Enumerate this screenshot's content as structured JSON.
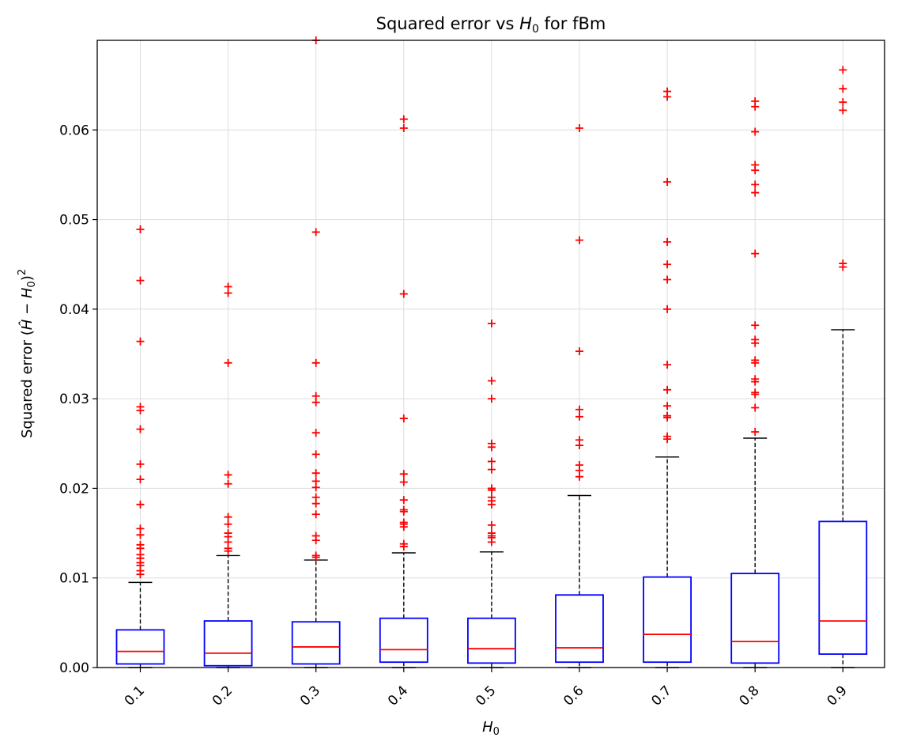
{
  "chart_data": {
    "type": "box",
    "title_parts": [
      "Squared error vs ",
      "H",
      "0",
      " for fBm"
    ],
    "xlabel_parts": [
      "H",
      "0"
    ],
    "ylabel_parts": [
      "Squared error (",
      "Ĥ",
      " − ",
      "H",
      "0",
      ")",
      "2"
    ],
    "categories": [
      "0.1",
      "0.2",
      "0.3",
      "0.4",
      "0.5",
      "0.6",
      "0.7",
      "0.8",
      "0.9"
    ],
    "ylim": [
      0,
      0.07
    ],
    "yticks": [
      {
        "value": 0.0,
        "label": "0.00"
      },
      {
        "value": 0.01,
        "label": "0.01"
      },
      {
        "value": 0.02,
        "label": "0.02"
      },
      {
        "value": 0.03,
        "label": "0.03"
      },
      {
        "value": 0.04,
        "label": "0.04"
      },
      {
        "value": 0.05,
        "label": "0.05"
      },
      {
        "value": 0.06,
        "label": "0.06"
      }
    ],
    "grid": true,
    "colors": {
      "box": "#0000ff",
      "median": "#ff0000",
      "whisker": "#000000",
      "flier": "#ff0000",
      "grid": "#dddddd"
    },
    "boxes": [
      {
        "category": "0.1",
        "whislo": 0.0,
        "q1": 0.0004,
        "median": 0.0018,
        "q3": 0.0042,
        "whishi": 0.0095,
        "fliers": [
          0.0489,
          0.0432,
          0.0364,
          0.0291,
          0.0287,
          0.0266,
          0.0227,
          0.021,
          0.0182,
          0.0155,
          0.0148,
          0.0137,
          0.0133,
          0.0126,
          0.0122,
          0.0117,
          0.0114,
          0.0108,
          0.0104
        ]
      },
      {
        "category": "0.2",
        "whislo": 0.0,
        "q1": 0.0002,
        "median": 0.0016,
        "q3": 0.0052,
        "whishi": 0.0125,
        "fliers": [
          0.0425,
          0.0418,
          0.034,
          0.0215,
          0.0205,
          0.0168,
          0.016,
          0.015,
          0.0146,
          0.014,
          0.0133,
          0.013
        ]
      },
      {
        "category": "0.3",
        "whislo": 0.0,
        "q1": 0.0004,
        "median": 0.0023,
        "q3": 0.0051,
        "whishi": 0.012,
        "fliers": [
          0.07,
          0.0486,
          0.034,
          0.0303,
          0.0296,
          0.0262,
          0.0238,
          0.0217,
          0.0208,
          0.0201,
          0.019,
          0.0183,
          0.0171,
          0.0147,
          0.0142,
          0.0125,
          0.0123
        ]
      },
      {
        "category": "0.4",
        "whislo": 0.0,
        "q1": 0.0006,
        "median": 0.002,
        "q3": 0.0055,
        "whishi": 0.0128,
        "fliers": [
          0.0612,
          0.0602,
          0.0417,
          0.0278,
          0.0216,
          0.0207,
          0.0187,
          0.0176,
          0.0174,
          0.0162,
          0.016,
          0.0157,
          0.0138,
          0.0135
        ]
      },
      {
        "category": "0.5",
        "whislo": 0.0,
        "q1": 0.0005,
        "median": 0.0021,
        "q3": 0.0055,
        "whishi": 0.0129,
        "fliers": [
          0.0384,
          0.032,
          0.03,
          0.025,
          0.0246,
          0.023,
          0.0221,
          0.02,
          0.0198,
          0.019,
          0.0186,
          0.0182,
          0.0159,
          0.015,
          0.0147,
          0.0145,
          0.014
        ]
      },
      {
        "category": "0.6",
        "whislo": 0.0,
        "q1": 0.0006,
        "median": 0.0022,
        "q3": 0.0081,
        "whishi": 0.0192,
        "fliers": [
          0.0602,
          0.0477,
          0.0353,
          0.0288,
          0.028,
          0.0254,
          0.0248,
          0.0226,
          0.022,
          0.0213
        ]
      },
      {
        "category": "0.7",
        "whislo": 0.0,
        "q1": 0.0006,
        "median": 0.0037,
        "q3": 0.0101,
        "whishi": 0.0235,
        "fliers": [
          0.0643,
          0.0637,
          0.0542,
          0.0475,
          0.045,
          0.0433,
          0.04,
          0.0338,
          0.031,
          0.0292,
          0.0281,
          0.0279,
          0.0258,
          0.0255
        ]
      },
      {
        "category": "0.8",
        "whislo": 0.0,
        "q1": 0.0005,
        "median": 0.0029,
        "q3": 0.0105,
        "whishi": 0.0256,
        "fliers": [
          0.0632,
          0.0626,
          0.0598,
          0.0561,
          0.0555,
          0.0539,
          0.053,
          0.0462,
          0.0382,
          0.0366,
          0.0362,
          0.0343,
          0.034,
          0.0322,
          0.0319,
          0.0307,
          0.0305,
          0.029,
          0.0263
        ]
      },
      {
        "category": "0.9",
        "whislo": 0.0,
        "q1": 0.0015,
        "median": 0.0052,
        "q3": 0.0163,
        "whishi": 0.0377,
        "fliers": [
          0.0667,
          0.0646,
          0.0631,
          0.0622,
          0.0451,
          0.0447
        ]
      }
    ]
  }
}
